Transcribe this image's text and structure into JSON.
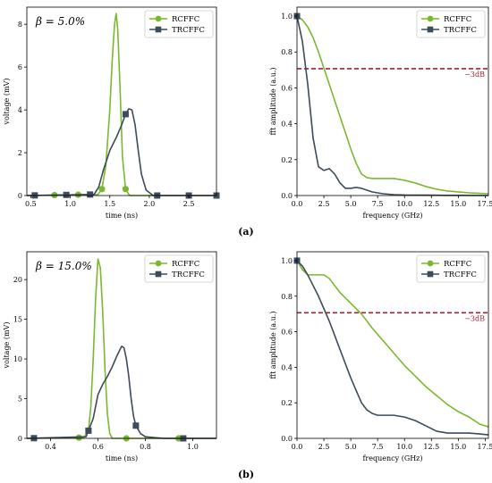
{
  "captions": {
    "a": "(a)",
    "b": "(b)"
  },
  "colors": {
    "rcffc": "#7cb82f",
    "trcffc": "#3d4b5c",
    "threshold": "#a4222f"
  },
  "chart_data": [
    {
      "id": "a-time",
      "type": "line",
      "xlabel": "time (ns)",
      "ylabel": "voltage (mV)",
      "xlim": [
        0.45,
        2.85
      ],
      "ylim": [
        0,
        8.8
      ],
      "xticks": [
        0.5,
        1.0,
        1.5,
        2.0,
        2.5
      ],
      "yticks": [
        0,
        2,
        4,
        6,
        8
      ],
      "xtick_labels": [
        "0.5",
        "1.0",
        "1.5",
        "2.0",
        "2.5"
      ],
      "ytick_labels": [
        "0",
        "2",
        "4",
        "6",
        "8"
      ],
      "annotation": "β = 5.0%",
      "legend_position": "top-right",
      "series": [
        {
          "name": "RCFFC",
          "marker": "circle",
          "x": [
            0.45,
            1.35,
            1.4,
            1.45,
            1.5,
            1.53,
            1.56,
            1.58,
            1.6,
            1.63,
            1.66,
            1.7,
            1.75,
            2.85
          ],
          "y": [
            0,
            0.05,
            0.3,
            1.4,
            4.0,
            6.3,
            8.0,
            8.5,
            7.8,
            5.0,
            1.8,
            0.3,
            0,
            0
          ],
          "marker_x": [
            0.8,
            1.1,
            1.4,
            1.7
          ]
        },
        {
          "name": "TRCFFC",
          "marker": "square",
          "x": [
            0.45,
            1.3,
            1.36,
            1.42,
            1.5,
            1.58,
            1.65,
            1.7,
            1.74,
            1.78,
            1.82,
            1.86,
            1.9,
            1.96,
            2.05,
            2.85
          ],
          "y": [
            0,
            0.05,
            0.4,
            1.2,
            2.1,
            2.7,
            3.3,
            3.8,
            4.05,
            4.0,
            3.3,
            2.1,
            1.0,
            0.25,
            0,
            0
          ],
          "marker_x": [
            0.55,
            0.95,
            1.25,
            1.7,
            2.1,
            2.5,
            2.85
          ]
        }
      ]
    },
    {
      "id": "a-freq",
      "type": "line",
      "xlabel": "frequency (GHz)",
      "ylabel": "fft amplitude (a.u.)",
      "xlim": [
        0,
        17.8
      ],
      "ylim": [
        0,
        1.05
      ],
      "xticks": [
        0,
        2.5,
        5,
        7.5,
        10,
        12.5,
        15,
        17.5
      ],
      "yticks": [
        0,
        0.2,
        0.4,
        0.6,
        0.8,
        1.0
      ],
      "xtick_labels": [
        "0.0",
        "2.5",
        "5.0",
        "7.5",
        "10.0",
        "12.5",
        "15.0",
        "17.5"
      ],
      "ytick_labels": [
        "0.0",
        "0.2",
        "0.4",
        "0.6",
        "0.8",
        "1.0"
      ],
      "threshold": {
        "y": 0.707,
        "label": "−3dB"
      },
      "legend_position": "top-right",
      "series": [
        {
          "name": "RCFFC",
          "marker": "circle",
          "x": [
            0,
            0.5,
            1,
            1.5,
            2,
            2.5,
            3,
            3.5,
            4,
            4.5,
            5,
            5.5,
            6,
            6.5,
            7,
            8,
            9,
            10,
            11,
            12,
            13,
            14,
            15,
            16,
            17,
            17.8
          ],
          "y": [
            1.0,
            0.98,
            0.94,
            0.88,
            0.8,
            0.71,
            0.62,
            0.53,
            0.44,
            0.35,
            0.26,
            0.18,
            0.12,
            0.1,
            0.095,
            0.095,
            0.095,
            0.085,
            0.07,
            0.05,
            0.035,
            0.025,
            0.02,
            0.015,
            0.012,
            0.01
          ],
          "marker_x": [
            0
          ]
        },
        {
          "name": "TRCFFC",
          "marker": "square",
          "x": [
            0,
            0.5,
            1,
            1.5,
            2,
            2.5,
            3,
            3.5,
            4,
            4.5,
            5,
            5.5,
            6,
            7,
            8,
            9,
            10,
            12,
            14,
            17.8
          ],
          "y": [
            1.0,
            0.86,
            0.62,
            0.32,
            0.16,
            0.14,
            0.15,
            0.12,
            0.07,
            0.04,
            0.04,
            0.045,
            0.04,
            0.02,
            0.01,
            0.005,
            0.003,
            0.002,
            0.001,
            0
          ],
          "marker_x": [
            0
          ]
        }
      ]
    },
    {
      "id": "b-time",
      "type": "line",
      "xlabel": "time (ns)",
      "ylabel": "voltage (mV)",
      "xlim": [
        0.3,
        1.1
      ],
      "ylim": [
        0,
        23.5
      ],
      "xticks": [
        0.4,
        0.6,
        0.8,
        1.0
      ],
      "yticks": [
        0,
        5,
        10,
        15,
        20
      ],
      "xtick_labels": [
        "0.4",
        "0.6",
        "0.8",
        "1.0"
      ],
      "ytick_labels": [
        "0",
        "5",
        "10",
        "15",
        "20"
      ],
      "annotation": "β = 15.0%",
      "legend_position": "top-right",
      "series": [
        {
          "name": "RCFFC",
          "marker": "circle",
          "x": [
            0.3,
            0.54,
            0.56,
            0.57,
            0.58,
            0.59,
            0.6,
            0.61,
            0.62,
            0.63,
            0.64,
            0.65,
            0.66,
            1.1
          ],
          "y": [
            0,
            0.1,
            1.0,
            4.0,
            10.0,
            17.5,
            22.6,
            21.5,
            16.0,
            8.5,
            3.0,
            0.6,
            0,
            0
          ],
          "marker_x": [
            0.52,
            0.72,
            0.94
          ]
        },
        {
          "name": "TRCFFC",
          "marker": "square",
          "x": [
            0.3,
            0.55,
            0.58,
            0.6,
            0.62,
            0.64,
            0.66,
            0.68,
            0.7,
            0.71,
            0.72,
            0.73,
            0.74,
            0.75,
            0.76,
            0.78,
            0.8,
            0.84,
            0.88,
            1.1
          ],
          "y": [
            0,
            0.2,
            2.5,
            5.5,
            6.8,
            7.8,
            9.0,
            10.4,
            11.6,
            11.4,
            10.0,
            7.8,
            5.0,
            2.8,
            1.6,
            0.6,
            0.2,
            0.1,
            0,
            0
          ],
          "marker_x": [
            0.33,
            0.56,
            0.76,
            0.96
          ]
        }
      ]
    },
    {
      "id": "b-freq",
      "type": "line",
      "xlabel": "frequency (GHz)",
      "ylabel": "fft amplitude (a.u.)",
      "xlim": [
        0,
        17.8
      ],
      "ylim": [
        0,
        1.05
      ],
      "xticks": [
        0,
        2.5,
        5,
        7.5,
        10,
        12.5,
        15,
        17.5
      ],
      "yticks": [
        0,
        0.2,
        0.4,
        0.6,
        0.8,
        1.0
      ],
      "xtick_labels": [
        "0.0",
        "2.5",
        "5.0",
        "7.5",
        "10.0",
        "12.5",
        "15.0",
        "17.5"
      ],
      "ytick_labels": [
        "0.0",
        "0.2",
        "0.4",
        "0.6",
        "0.8",
        "1.0"
      ],
      "threshold": {
        "y": 0.707,
        "label": "−3dB"
      },
      "legend_position": "top-right",
      "series": [
        {
          "name": "RCFFC",
          "marker": "circle",
          "x": [
            0,
            0.5,
            1,
            1.5,
            2,
            2.5,
            3,
            3.5,
            4,
            5,
            6,
            7,
            8,
            9,
            10,
            11,
            12,
            13,
            14,
            15,
            16,
            17,
            17.8
          ],
          "y": [
            1.0,
            0.95,
            0.92,
            0.92,
            0.92,
            0.92,
            0.9,
            0.86,
            0.82,
            0.76,
            0.7,
            0.62,
            0.55,
            0.48,
            0.41,
            0.35,
            0.29,
            0.24,
            0.19,
            0.15,
            0.12,
            0.08,
            0.065
          ],
          "marker_x": [
            0
          ]
        },
        {
          "name": "TRCFFC",
          "marker": "square",
          "x": [
            0,
            0.5,
            1,
            1.5,
            2,
            2.5,
            3,
            3.5,
            4,
            4.5,
            5,
            5.5,
            6,
            6.5,
            7,
            7.5,
            8,
            9,
            10,
            11,
            12,
            13,
            14,
            15,
            16,
            17,
            17.8
          ],
          "y": [
            1.0,
            0.97,
            0.92,
            0.86,
            0.8,
            0.73,
            0.66,
            0.58,
            0.5,
            0.42,
            0.34,
            0.27,
            0.2,
            0.16,
            0.14,
            0.13,
            0.13,
            0.13,
            0.12,
            0.1,
            0.07,
            0.04,
            0.03,
            0.03,
            0.03,
            0.025,
            0.02
          ],
          "marker_x": [
            0
          ]
        }
      ]
    }
  ]
}
